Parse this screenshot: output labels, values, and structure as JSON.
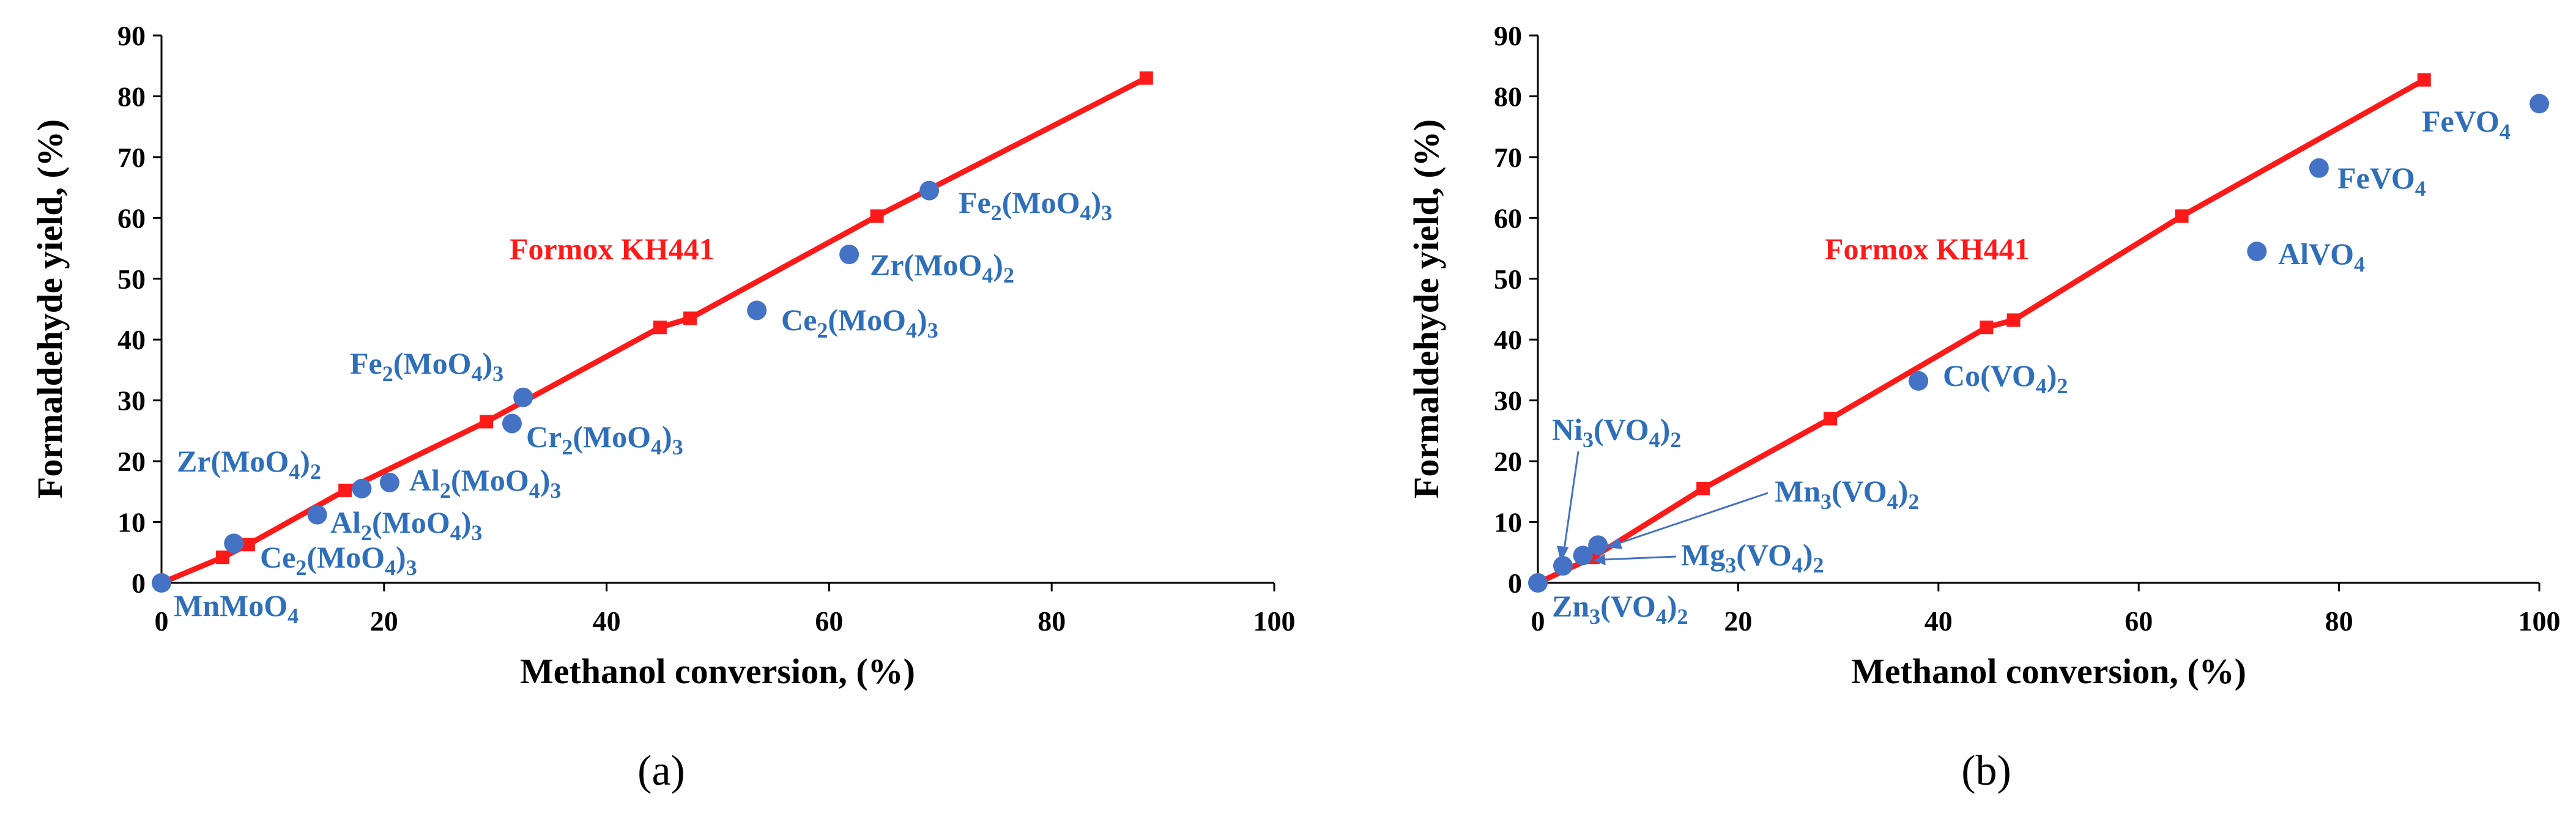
{
  "colors": {
    "reference": "#ff1a1a",
    "points": "#4472c4",
    "labels": "#2f6fba",
    "axis": "#000000"
  },
  "chart_data": [
    {
      "panel": "a",
      "type": "scatter",
      "caption": "(a)",
      "xlabel": "Methanol conversion, (%)",
      "ylabel": "Formaldehyde yield, (%)",
      "xlim": [
        0,
        100
      ],
      "ylim": [
        0,
        90
      ],
      "xticks": [
        0,
        20,
        40,
        60,
        80,
        100
      ],
      "yticks": [
        0,
        10,
        20,
        30,
        40,
        50,
        60,
        70,
        80,
        90
      ],
      "reference_series": {
        "name": "Formox KH441",
        "x": [
          0,
          5.5,
          7.8,
          16.5,
          29.2,
          44.8,
          47.5,
          64.3,
          88.5
        ],
        "y": [
          0,
          4.2,
          6.3,
          15.2,
          26.5,
          42.0,
          43.5,
          60.3,
          83.0
        ]
      },
      "points": [
        {
          "label": "MnMoO4",
          "x": 0,
          "y": 0
        },
        {
          "label": "Ce2(MoO4)3",
          "x": 6.5,
          "y": 6.5
        },
        {
          "label": "Al2(MoO4)3",
          "x": 14,
          "y": 11.2
        },
        {
          "label": "Zr(MoO4)2",
          "x": 18,
          "y": 15.5
        },
        {
          "label": "Al2(MoO4)3",
          "x": 20.5,
          "y": 16.5
        },
        {
          "label": "Cr2(MoO4)3",
          "x": 31.5,
          "y": 26.2
        },
        {
          "label": "Fe2(MoO4)3",
          "x": 32.5,
          "y": 30.5
        },
        {
          "label": "Ce2(MoO4)3",
          "x": 53.5,
          "y": 44.8
        },
        {
          "label": "Zr(MoO4)2",
          "x": 61.8,
          "y": 54.0
        },
        {
          "label": "Fe2(MoO4)3",
          "x": 69,
          "y": 64.5
        }
      ]
    },
    {
      "panel": "b",
      "type": "scatter",
      "caption": "(b)",
      "xlabel": "Methanol conversion, (%)",
      "ylabel": "Formaldehyde yield, (%)",
      "xlim": [
        0,
        100
      ],
      "ylim": [
        0,
        90
      ],
      "xticks": [
        0,
        20,
        40,
        60,
        80,
        100
      ],
      "yticks": [
        0,
        10,
        20,
        30,
        40,
        50,
        60,
        70,
        80,
        90
      ],
      "reference_series": {
        "name": "Formox KH441",
        "x": [
          0,
          5.5,
          16.5,
          29.2,
          44.8,
          47.5,
          64.3,
          88.5
        ],
        "y": [
          0,
          4.2,
          15.5,
          27.0,
          42.0,
          43.2,
          60.3,
          82.7
        ]
      },
      "points": [
        {
          "label": "Zn3(VO4)2",
          "x": 0,
          "y": 0
        },
        {
          "label": "Ni3(VO4)2",
          "x": 2.5,
          "y": 2.8
        },
        {
          "label": "Mg3(VO4)2",
          "x": 4.5,
          "y": 4.5
        },
        {
          "label": "Mn3(VO4)2",
          "x": 6,
          "y": 6.2
        },
        {
          "label": "Co(VO4)2",
          "x": 38,
          "y": 33.2
        },
        {
          "label": "AlVO4",
          "x": 71.8,
          "y": 54.5
        },
        {
          "label": "FeVO4",
          "x": 78,
          "y": 68.2
        },
        {
          "label": "FeVO4",
          "x": 100,
          "y": 78.8
        }
      ]
    }
  ]
}
